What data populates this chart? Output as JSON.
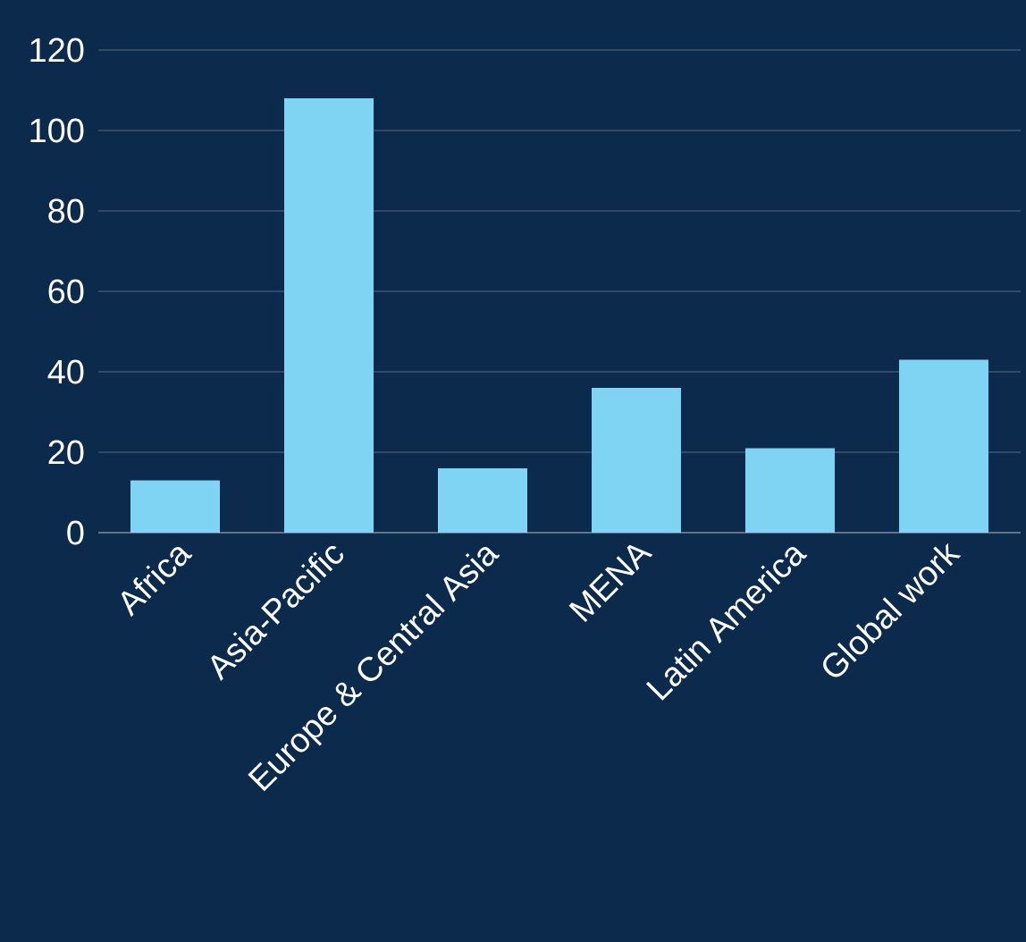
{
  "chart_data": {
    "type": "bar",
    "categories": [
      "Africa",
      "Asia-Pacific",
      "Europe & Central Asia",
      "MENA",
      "Latin America",
      "Global work"
    ],
    "values": [
      13,
      108,
      16,
      36,
      21,
      43
    ],
    "color": "#7fd4f4",
    "ylim": [
      0,
      120
    ],
    "yticks": [
      0,
      20,
      40,
      60,
      80,
      100,
      120
    ],
    "grid": "y"
  }
}
